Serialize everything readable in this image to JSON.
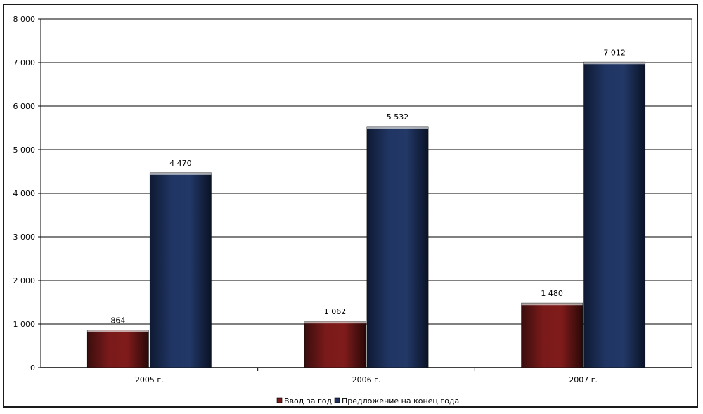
{
  "chart_data": {
    "type": "bar",
    "title": "",
    "xlabel": "",
    "ylabel": "",
    "categories": [
      "2005 г.",
      "2006 г.",
      "2007 г."
    ],
    "series": [
      {
        "name": "Ввод за год",
        "values": [
          864,
          1062,
          1480
        ],
        "data_labels": [
          "864",
          "1 062",
          "1 480"
        ],
        "color": "#7a1a1a"
      },
      {
        "name": "Предложение на конец года",
        "values": [
          4470,
          5532,
          7012
        ],
        "data_labels": [
          "4 470",
          "5 532",
          "7 012"
        ],
        "color": "#1f3260"
      }
    ],
    "ylim": [
      0,
      8000
    ],
    "yticks": [
      0,
      1000,
      2000,
      3000,
      4000,
      5000,
      6000,
      7000,
      8000
    ],
    "ytick_labels": [
      "0",
      "1 000",
      "2 000",
      "3 000",
      "4 000",
      "5 000",
      "6 000",
      "7 000",
      "8 000"
    ],
    "grid": true,
    "legend_position": "bottom"
  }
}
